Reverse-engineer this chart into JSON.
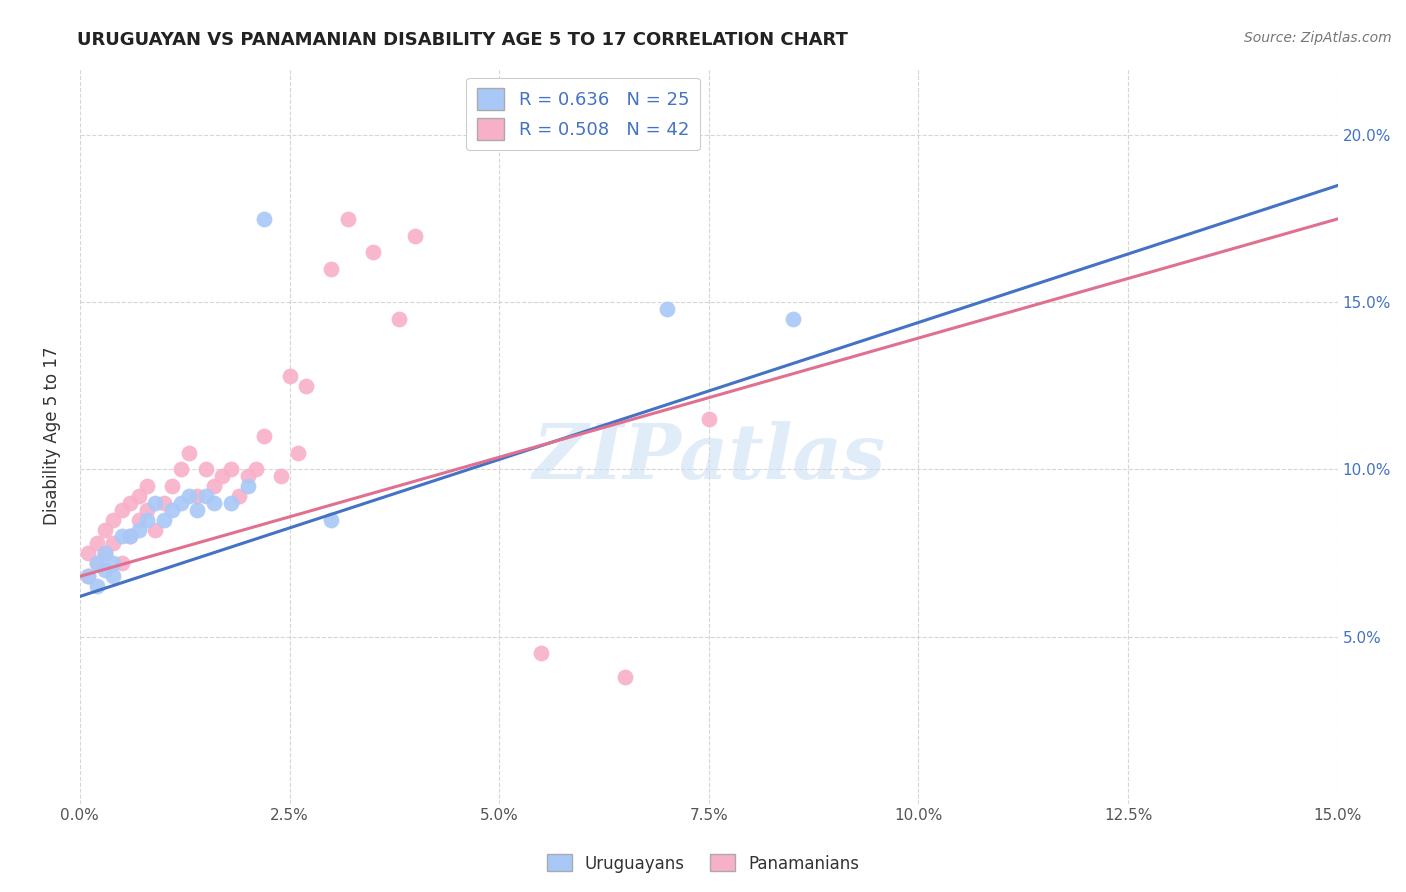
{
  "title": "URUGUAYAN VS PANAMANIAN DISABILITY AGE 5 TO 17 CORRELATION CHART",
  "source": "Source: ZipAtlas.com",
  "ylabel": "Disability Age 5 to 17",
  "xlim": [
    0.0,
    0.15
  ],
  "ylim": [
    0.0,
    0.22
  ],
  "xtick_positions": [
    0.0,
    0.025,
    0.05,
    0.075,
    0.1,
    0.125,
    0.15
  ],
  "xtick_labels": [
    "0.0%",
    "2.5%",
    "5.0%",
    "7.5%",
    "10.0%",
    "12.5%",
    "15.0%"
  ],
  "ytick_positions": [
    0.05,
    0.1,
    0.15,
    0.2
  ],
  "ytick_labels": [
    "5.0%",
    "10.0%",
    "15.0%",
    "20.0%"
  ],
  "uruguayan_color": "#a8c8f8",
  "panamanian_color": "#f8b0c8",
  "uruguayan_line_color": "#4472C4",
  "panamanian_line_color": "#E07090",
  "R_uruguayan": 0.636,
  "N_uruguayan": 25,
  "R_panamanian": 0.508,
  "N_panamanian": 42,
  "watermark": "ZIPatlas",
  "uruguayan_x": [
    0.001,
    0.002,
    0.002,
    0.003,
    0.003,
    0.004,
    0.004,
    0.005,
    0.006,
    0.007,
    0.008,
    0.009,
    0.01,
    0.011,
    0.012,
    0.013,
    0.014,
    0.015,
    0.016,
    0.018,
    0.02,
    0.022,
    0.03,
    0.07,
    0.085
  ],
  "uruguayan_y": [
    0.068,
    0.065,
    0.072,
    0.07,
    0.075,
    0.072,
    0.068,
    0.08,
    0.08,
    0.082,
    0.085,
    0.09,
    0.085,
    0.088,
    0.09,
    0.092,
    0.088,
    0.092,
    0.09,
    0.09,
    0.095,
    0.175,
    0.085,
    0.148,
    0.145
  ],
  "panamanian_x": [
    0.001,
    0.001,
    0.002,
    0.002,
    0.003,
    0.003,
    0.004,
    0.004,
    0.005,
    0.005,
    0.006,
    0.006,
    0.007,
    0.007,
    0.008,
    0.008,
    0.009,
    0.01,
    0.011,
    0.012,
    0.013,
    0.014,
    0.015,
    0.016,
    0.017,
    0.018,
    0.019,
    0.02,
    0.021,
    0.022,
    0.024,
    0.025,
    0.026,
    0.027,
    0.03,
    0.032,
    0.035,
    0.038,
    0.04,
    0.055,
    0.065,
    0.075
  ],
  "panamanian_y": [
    0.068,
    0.075,
    0.072,
    0.078,
    0.075,
    0.082,
    0.078,
    0.085,
    0.072,
    0.088,
    0.08,
    0.09,
    0.085,
    0.092,
    0.088,
    0.095,
    0.082,
    0.09,
    0.095,
    0.1,
    0.105,
    0.092,
    0.1,
    0.095,
    0.098,
    0.1,
    0.092,
    0.098,
    0.1,
    0.11,
    0.098,
    0.128,
    0.105,
    0.125,
    0.16,
    0.175,
    0.165,
    0.145,
    0.17,
    0.045,
    0.038,
    0.115
  ],
  "uru_line_x": [
    0.0,
    0.15
  ],
  "uru_line_y": [
    0.062,
    0.185
  ],
  "pan_line_x": [
    0.0,
    0.15
  ],
  "pan_line_y": [
    0.068,
    0.175
  ]
}
